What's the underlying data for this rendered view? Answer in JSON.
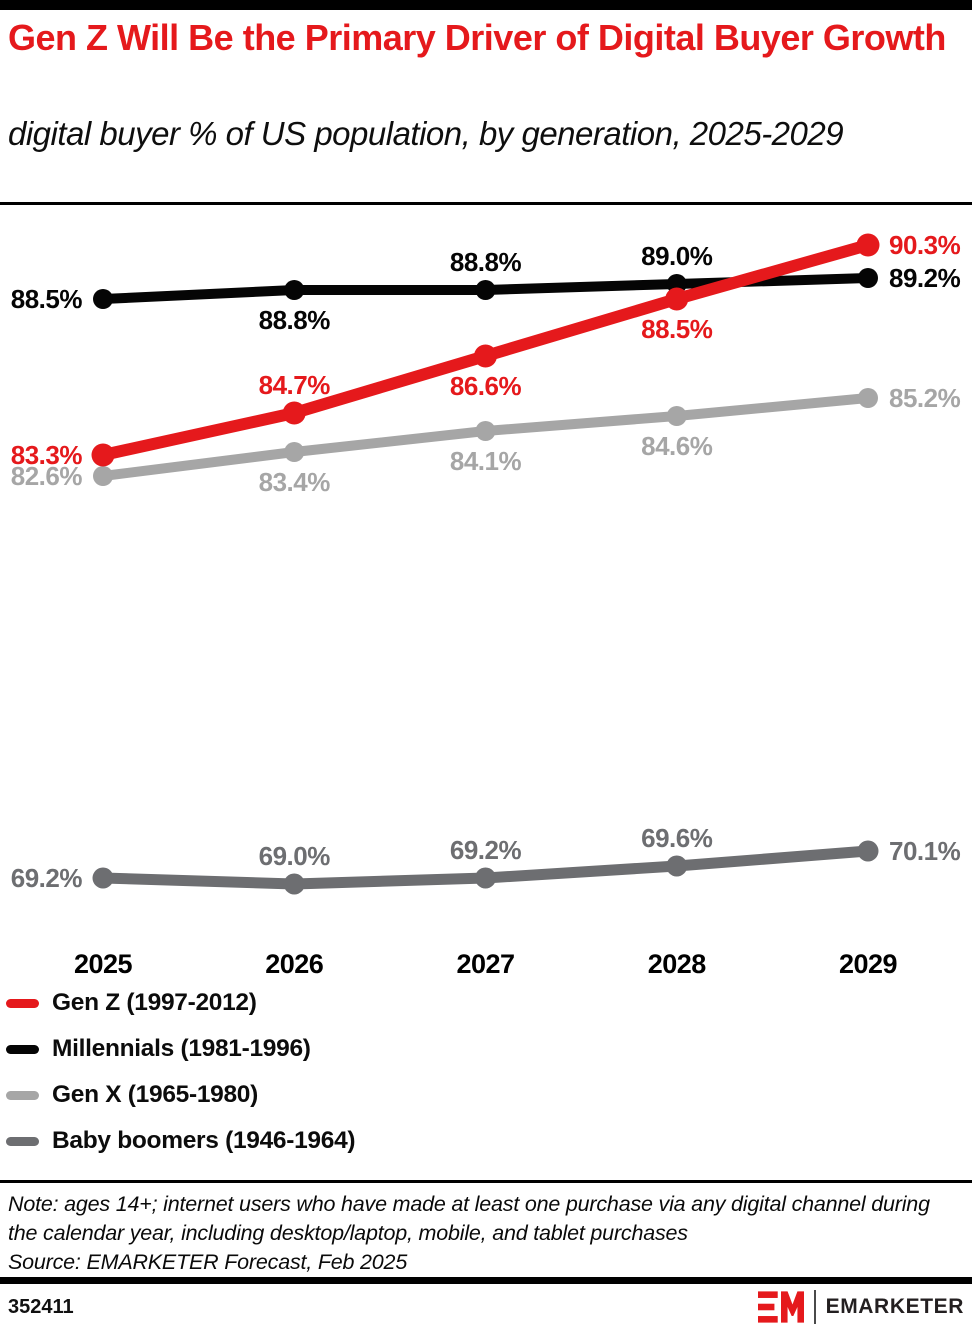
{
  "header": {
    "title": "Gen Z Will Be the Primary Driver of Digital Buyer Growth",
    "subtitle": "digital buyer % of US population, by generation, 2025-2029"
  },
  "colors": {
    "brand_red": "#E5191C",
    "millennials_black": "#050505",
    "genx_gray": "#A6A6A6",
    "boomers_gray": "#6D6E71"
  },
  "chart_data": {
    "type": "line",
    "x": [
      "2025",
      "2026",
      "2027",
      "2028",
      "2029"
    ],
    "series": [
      {
        "name": "Gen Z (1997-2012)",
        "color": "#E5191C",
        "values": [
          83.3,
          84.7,
          86.6,
          88.5,
          90.3
        ],
        "label_pos": [
          "left",
          "above",
          "below",
          "below",
          "right"
        ]
      },
      {
        "name": "Millennials (1981-1996)",
        "color": "#050505",
        "values": [
          88.5,
          88.8,
          88.8,
          89.0,
          89.2
        ],
        "label_pos": [
          "left",
          "below",
          "above",
          "above",
          "right"
        ]
      },
      {
        "name": "Gen X (1965-1980)",
        "color": "#A6A6A6",
        "values": [
          82.6,
          83.4,
          84.1,
          84.6,
          85.2
        ],
        "label_pos": [
          "left",
          "below",
          "below",
          "below",
          "right"
        ]
      },
      {
        "name": "Baby boomers (1946-1964)",
        "color": "#6D6E71",
        "values": [
          69.2,
          69.0,
          69.2,
          69.6,
          70.1
        ],
        "label_pos": [
          "left",
          "above",
          "above",
          "above",
          "right"
        ]
      }
    ],
    "value_suffix": "%",
    "title": "Gen Z Will Be the Primary Driver of Digital Buyer Growth",
    "xlabel": "",
    "ylabel": "digital buyer % of US population",
    "ylim": [
      67,
      92
    ],
    "grid": false,
    "legend_position": "bottom-left",
    "z_order": [
      2,
      3,
      1,
      0
    ]
  },
  "footer": {
    "note": "Note: ages 14+; internet users who have made at least one purchase via any digital channel during the calendar year, including desktop/laptop, mobile, and tablet purchases",
    "source": "Source: EMARKETER Forecast, Feb 2025",
    "chart_id": "352411",
    "brand_name": "EMARKETER"
  }
}
